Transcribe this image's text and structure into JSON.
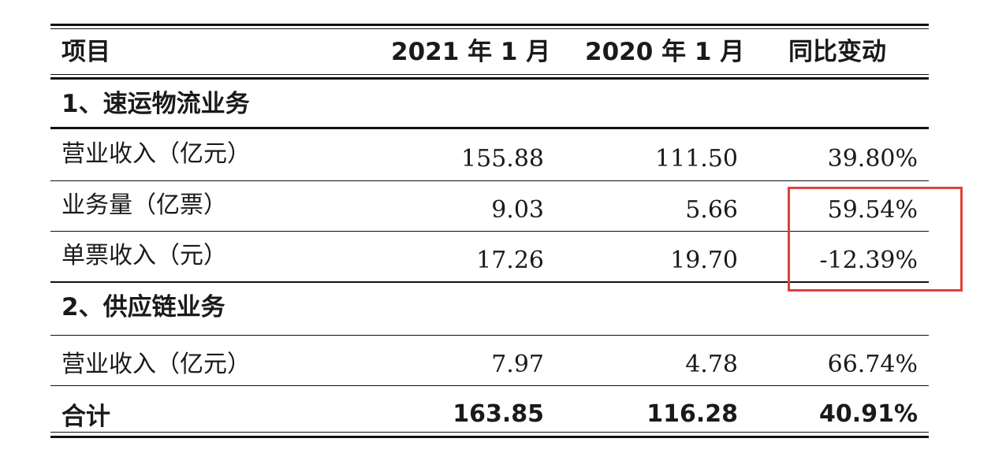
{
  "table": {
    "headers": [
      "项目",
      "2021 年 1 月",
      "2020 年 1 月",
      "同比变动"
    ],
    "section1_title": "1、速运物流业务",
    "section2_title": "2、供应链业务",
    "rows": [
      {
        "label": "营业收入（亿元）",
        "v2021": "155.88",
        "v2020": "111.50",
        "change": "39.80%"
      },
      {
        "label": "业务量（亿票）",
        "v2021": "9.03",
        "v2020": "5.66",
        "change": "59.54%"
      },
      {
        "label": "单票收入（元）",
        "v2021": "17.26",
        "v2020": "19.70",
        "change": "-12.39%"
      },
      {
        "label": "营业收入（亿元）",
        "v2021": "7.97",
        "v2020": "4.78",
        "change": "66.74%"
      }
    ],
    "total": {
      "label": "合计",
      "v2021": "163.85",
      "v2020": "116.28",
      "change": "40.91%"
    }
  },
  "colors": {
    "highlight": "#e0403c",
    "rule": "#111111"
  }
}
